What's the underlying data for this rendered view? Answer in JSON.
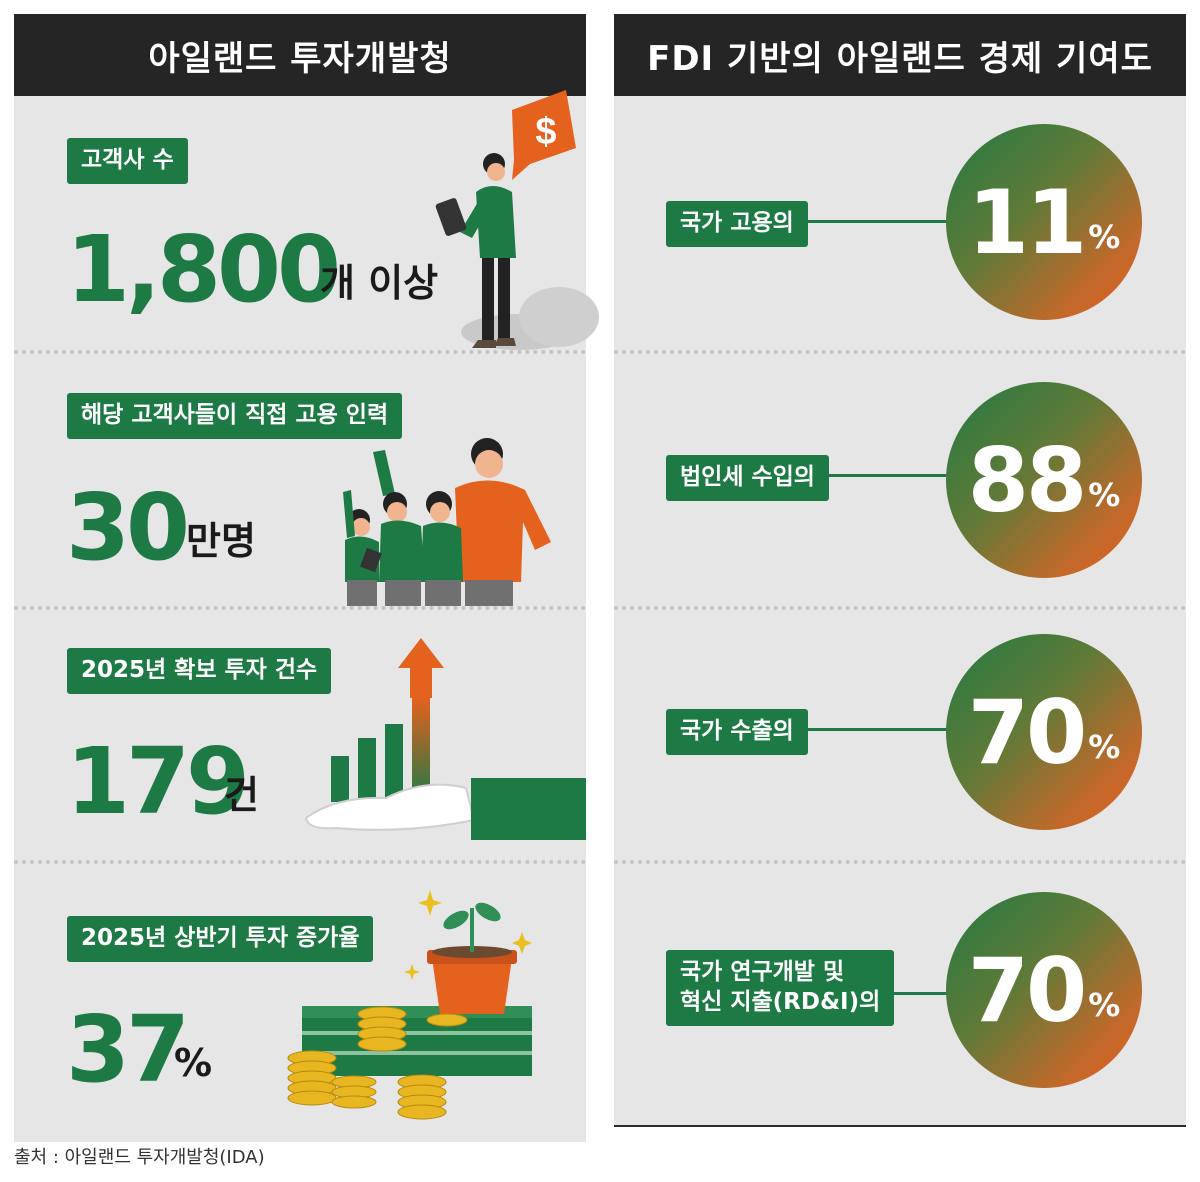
{
  "left_panel": {
    "title": "아일랜드 투자개발청",
    "stats": [
      {
        "label": "고객사 수",
        "value": "1,800",
        "unit": "개 이상"
      },
      {
        "label": "해당 고객사들이 직접 고용 인력",
        "value": "30",
        "unit": "만명"
      },
      {
        "label": "2025년 확보 투자 건수",
        "value": "179",
        "unit": "건"
      },
      {
        "label": "2025년 상반기 투자 증가율",
        "value": "37",
        "unit": "%"
      }
    ],
    "icon_dollar": "$"
  },
  "right_panel": {
    "title": "FDI 기반의 아일랜드 경제 기여도",
    "items": [
      {
        "label": "국가 고용의",
        "value": "11",
        "unit": "%"
      },
      {
        "label": "법인세 수입의",
        "value": "88",
        "unit": "%"
      },
      {
        "label": "국가 수출의",
        "value": "70",
        "unit": "%"
      },
      {
        "label_line1": "국가 연구개발 및",
        "label_line2": "혁신 지출(RD&I)의",
        "value": "70",
        "unit": "%"
      }
    ]
  },
  "source": "출처 : 아일랜드 투자개발청(IDA)",
  "colors": {
    "green": "#1e7a45",
    "orange": "#e4611e",
    "header": "#252525",
    "panel": "#e6e6e6"
  }
}
